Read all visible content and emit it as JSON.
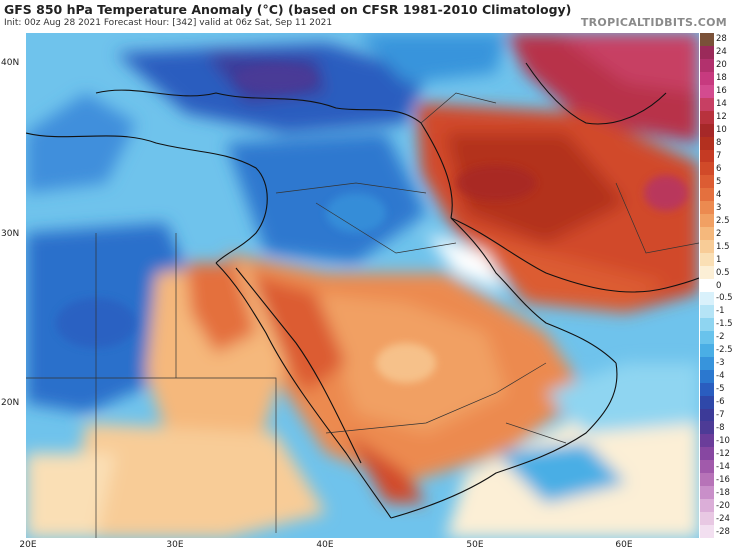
{
  "title": "GFS 850 hPa Temperature Anomaly (°C) (based on CFSR 1981-2010 Climatology)",
  "subtitle": "Init: 00z Aug 28 2021   Forecast Hour: [342]   valid at 06z Sat, Sep 11 2021",
  "brand": "TROPICALTIDBITS.COM",
  "lat_labels": [
    "40N",
    "30N",
    "20N"
  ],
  "lon_labels": [
    "20E",
    "30E",
    "40E",
    "50E",
    "60E"
  ],
  "colorbar": {
    "labels": [
      "28",
      "24",
      "20",
      "18",
      "16",
      "14",
      "12",
      "10",
      "8",
      "7",
      "6",
      "5",
      "4",
      "3",
      "2.5",
      "2",
      "1.5",
      "1",
      "0.5",
      "0",
      "-0.5",
      "-1",
      "-1.5",
      "-2",
      "-2.5",
      "-3",
      "-4",
      "-5",
      "-6",
      "-7",
      "-8",
      "-10",
      "-12",
      "-14",
      "-16",
      "-18",
      "-20",
      "-24",
      "-28"
    ],
    "colors": [
      "#7a5138",
      "#9b2a5a",
      "#b2316d",
      "#c73a7f",
      "#d34b8f",
      "#c73f63",
      "#b8323d",
      "#a62828",
      "#b3301f",
      "#c53a23",
      "#d14a29",
      "#dc5c33",
      "#e4703e",
      "#ec8a50",
      "#f1a063",
      "#f5b87c",
      "#f8cc97",
      "#fadfb5",
      "#fcefd6",
      "#ffffff",
      "#d9f1fb",
      "#b5e4f6",
      "#8fd5f1",
      "#69c3ec",
      "#4aaee5",
      "#3794dc",
      "#2b78cf",
      "#2a5dbf",
      "#2f48a9",
      "#3c3a98",
      "#4d3b96",
      "#6b3d9a",
      "#8747a1",
      "#a15aab",
      "#b773b8",
      "#c98fc9",
      "#dbaed8",
      "#e8c8e3",
      "#f2dff0"
    ]
  }
}
